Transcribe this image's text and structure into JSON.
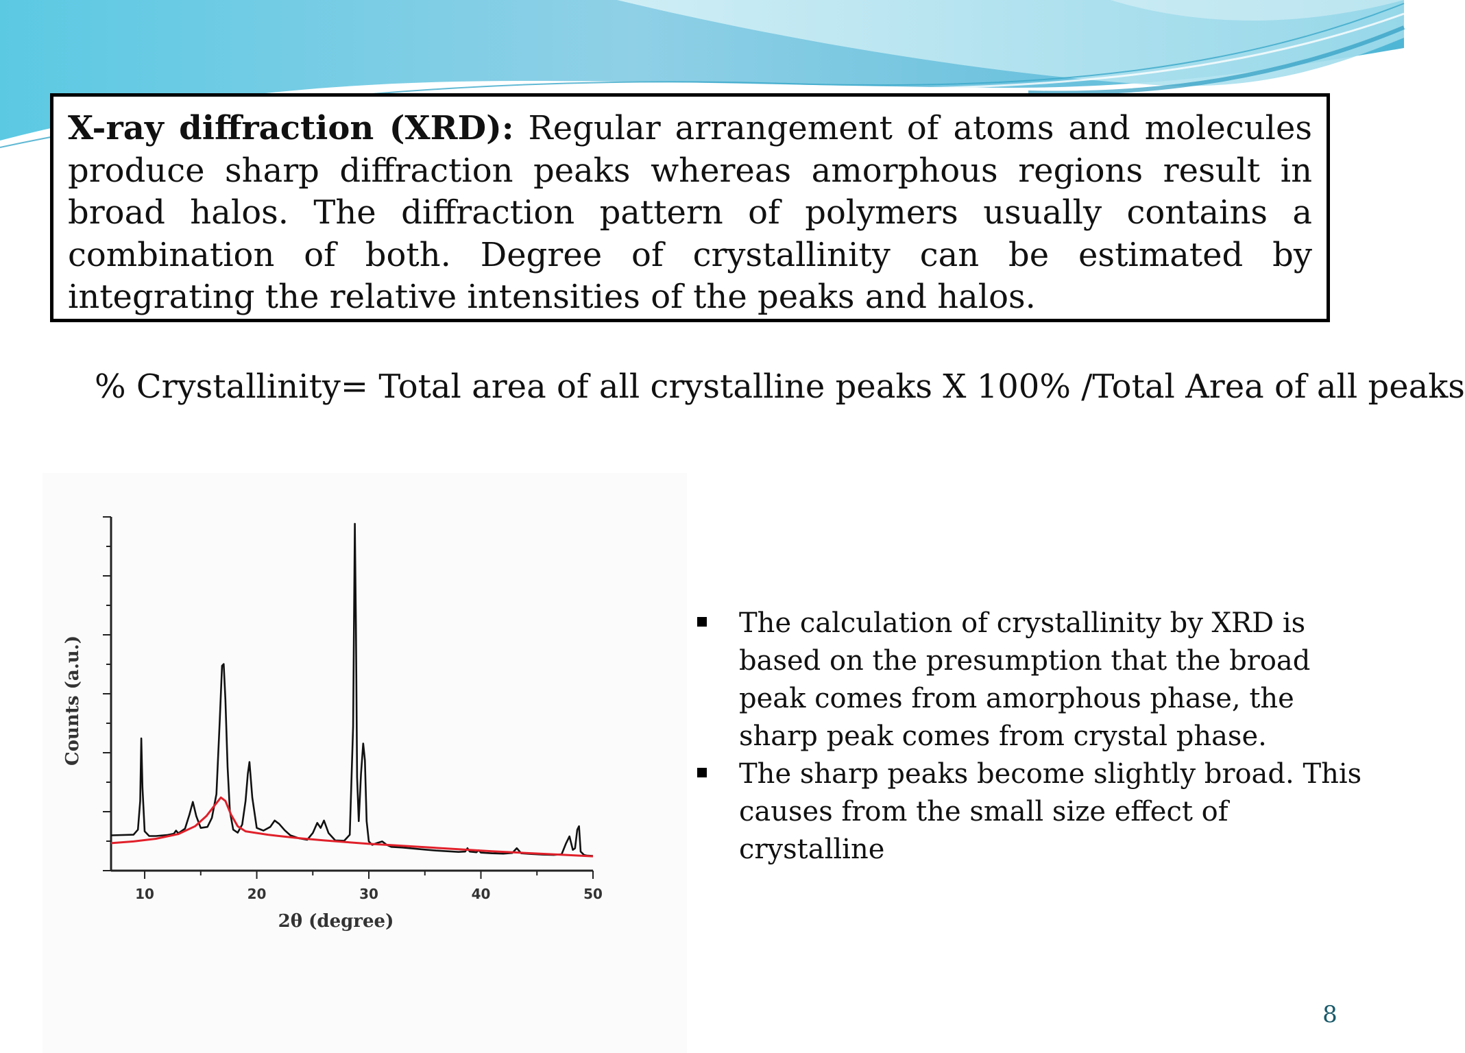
{
  "slide": {
    "xrd_heading": "X-ray diffraction (XRD):",
    "xrd_body": " Regular arrangement of atoms and molecules produce sharp diffraction peaks whereas amorphous regions result in broad halos. The diffraction pattern of polymers usually contains a combination of both. Degree of crystallinity can be estimated by integrating the relative intensities of the peaks and halos.",
    "formula": "% Crystallinity= Total area of all crystalline peaks X 100% /Total Area of all peaks",
    "bullets": [
      "The calculation of crystallinity by XRD is based on the presumption that the broad peak comes from amorphous phase, the sharp peak comes from crystal phase.",
      "The sharp peaks become slightly broad. This causes from the small size effect of crystalline"
    ],
    "page_number": "8",
    "colors": {
      "accent_teal": "#4cc3da",
      "accent_light": "#b7e9f2",
      "halo_curve": "#e0202a",
      "pattern_curve": "#111111",
      "page_number": "#1a5a6a"
    }
  },
  "chart_data": {
    "type": "line",
    "title": "",
    "xlabel": "2θ (degree)",
    "ylabel": "Counts (a.u.)",
    "xlim": [
      7,
      50
    ],
    "ylim": [
      0,
      100
    ],
    "x_ticks": [
      10,
      20,
      30,
      40,
      50
    ],
    "y_tick_labels": false,
    "grid": false,
    "legend": "none",
    "series": [
      {
        "role": "diffraction pattern",
        "color": "#111111",
        "x": [
          7,
          9.0,
          9.4,
          9.6,
          9.7,
          9.8,
          10.0,
          10.4,
          11,
          12,
          12.6,
          12.8,
          13.0,
          13.6,
          14.0,
          14.3,
          14.6,
          15.0,
          15.6,
          16.0,
          16.4,
          16.7,
          16.9,
          17.05,
          17.2,
          17.4,
          17.6,
          17.9,
          18.3,
          18.7,
          19.0,
          19.2,
          19.35,
          19.6,
          20.0,
          20.6,
          21.2,
          21.6,
          22.0,
          22.5,
          23.0,
          23.8,
          24.5,
          25.0,
          25.4,
          25.7,
          26.0,
          26.4,
          27.0,
          27.8,
          28.3,
          28.6,
          28.75,
          28.85,
          28.95,
          29.1,
          29.3,
          29.5,
          29.65,
          29.8,
          30.0,
          30.3,
          30.8,
          31.2,
          31.6,
          32.0,
          33,
          34,
          35,
          36,
          37,
          38,
          38.6,
          38.8,
          39.0,
          39.6,
          39.8,
          40.0,
          41,
          42,
          42.8,
          43.2,
          43.6,
          44.5,
          45.5,
          46.5,
          47.2,
          47.6,
          47.9,
          48.2,
          48.4,
          48.6,
          48.75,
          48.9,
          49.2,
          49.5,
          50
        ],
        "y": [
          7.8,
          8.0,
          9.5,
          18,
          36.5,
          22,
          9,
          7.6,
          7.6,
          7.9,
          8.3,
          9.2,
          8.4,
          9.8,
          14,
          17.7,
          13.5,
          10,
          10.3,
          13,
          20,
          42,
          58,
          58.5,
          48,
          28,
          15,
          9.5,
          8.6,
          11,
          18,
          26,
          29.5,
          19,
          10,
          9.2,
          10.3,
          12.2,
          11.2,
          9.3,
          7.8,
          6.9,
          6.5,
          8.5,
          11.5,
          10,
          12.2,
          8.5,
          6.3,
          6.2,
          8,
          40,
          100,
          70,
          25,
          12,
          26,
          35,
          30,
          12,
          6.0,
          5.0,
          5.6,
          6.0,
          5.0,
          4.4,
          4.2,
          3.9,
          3.6,
          3.3,
          3.1,
          2.9,
          3.0,
          4.0,
          3.0,
          2.8,
          3.4,
          2.7,
          2.5,
          2.4,
          2.6,
          4.0,
          2.5,
          2.3,
          2.1,
          2.0,
          2.2,
          5.5,
          7.5,
          3.5,
          4.0,
          9.5,
          10.5,
          3.0,
          2.0,
          1.8,
          1.7
        ]
      },
      {
        "role": "amorphous halo",
        "color": "#e0202a",
        "x": [
          7,
          9,
          11,
          13,
          14.5,
          15.5,
          16.2,
          16.8,
          17.2,
          17.7,
          18.3,
          19,
          20,
          21,
          22,
          24,
          26,
          28,
          30,
          32,
          35,
          38,
          41,
          44,
          47,
          50
        ],
        "y": [
          5.5,
          6.0,
          6.8,
          8.2,
          10.5,
          13.5,
          16.5,
          19.0,
          18.0,
          14.0,
          10.5,
          9.0,
          8.5,
          8.0,
          7.6,
          6.9,
          6.3,
          5.8,
          5.3,
          4.9,
          4.3,
          3.7,
          3.1,
          2.6,
          2.1,
          1.6
        ]
      }
    ]
  }
}
